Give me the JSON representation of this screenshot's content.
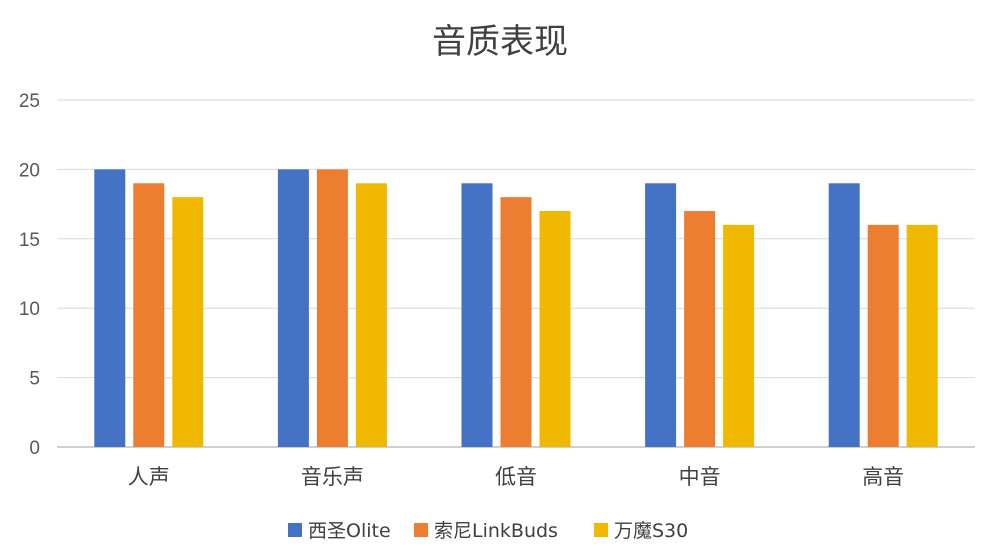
{
  "chart_data": {
    "type": "bar",
    "title": "音质表现",
    "categories": [
      "人声",
      "音乐声",
      "低音",
      "中音",
      "高音"
    ],
    "series": [
      {
        "name": "西圣Olite",
        "values": [
          20,
          20,
          19,
          19,
          19
        ],
        "color": "#4472C4"
      },
      {
        "name": "索尼LinkBuds",
        "values": [
          19,
          20,
          18,
          17,
          16
        ],
        "color": "#ED7D31"
      },
      {
        "name": "万魔S30",
        "values": [
          18,
          19,
          17,
          16,
          16
        ],
        "color": "#F0B800"
      }
    ],
    "ylim": [
      0,
      25
    ],
    "yticks": [
      0,
      5,
      10,
      15,
      20,
      25
    ],
    "grid": true,
    "legend_position": "bottom"
  }
}
